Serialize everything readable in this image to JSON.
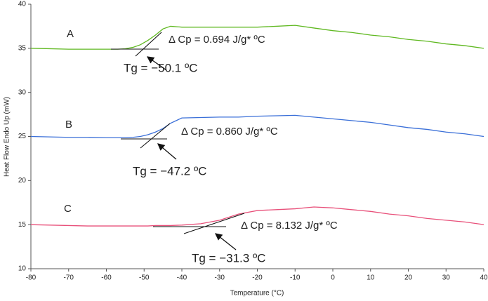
{
  "chart_data": {
    "type": "line",
    "x_label": "Temperature (°C)",
    "y_label": "Heat Flow Endo Up (mW)",
    "x": [
      -80,
      -75,
      -70,
      -65,
      -60,
      -57,
      -55,
      -53,
      -51,
      -49,
      -47,
      -45,
      -43,
      -40,
      -35,
      -30,
      -25,
      -20,
      -15,
      -10,
      -5,
      0,
      5,
      10,
      15,
      20,
      25,
      30,
      35,
      40
    ],
    "series": [
      {
        "name": "A",
        "color": "#5fb820",
        "values": [
          35,
          34.95,
          34.9,
          34.9,
          34.9,
          34.9,
          34.95,
          35.1,
          35.4,
          35.9,
          36.5,
          37.2,
          37.5,
          37.4,
          37.4,
          37.4,
          37.4,
          37.4,
          37.5,
          37.6,
          37.3,
          37.0,
          36.8,
          36.5,
          36.3,
          36.0,
          35.8,
          35.5,
          35.3,
          35.0
        ]
      },
      {
        "name": "B",
        "color": "#3a6fd8",
        "values": [
          25,
          24.95,
          24.9,
          24.9,
          24.85,
          24.85,
          24.85,
          24.9,
          25.0,
          25.2,
          25.5,
          25.9,
          26.5,
          27.1,
          27.15,
          27.2,
          27.2,
          27.3,
          27.35,
          27.4,
          27.2,
          27.0,
          26.8,
          26.6,
          26.3,
          26.0,
          25.8,
          25.5,
          25.3,
          25.0
        ]
      },
      {
        "name": "C",
        "color": "#e8507a",
        "values": [
          15,
          14.95,
          14.9,
          14.85,
          14.85,
          14.85,
          14.85,
          14.85,
          14.85,
          14.85,
          14.9,
          14.9,
          14.9,
          14.95,
          15.1,
          15.5,
          16.2,
          16.6,
          16.7,
          16.8,
          17.0,
          16.9,
          16.7,
          16.5,
          16.2,
          16.0,
          15.7,
          15.5,
          15.3,
          15.0
        ]
      }
    ],
    "annotations": [
      "Δ Cp = 0.694 J/g* ºC",
      "Tg = −50.1 ºC",
      "Δ Cp = 0.860 J/g* ºC",
      "Tg = −47.2 ºC",
      "Δ Cp = 8.132 J/g* ºC",
      "Tg = −31.3 ºC"
    ],
    "xlim": [
      -80,
      40
    ],
    "xticks": [
      -80,
      -70,
      -60,
      -50,
      -40,
      -30,
      -20,
      -10,
      0,
      10,
      20,
      30,
      40
    ],
    "ylim": [
      10,
      40
    ],
    "yticks": [
      10,
      15,
      20,
      25,
      30,
      35,
      40
    ],
    "grid": false
  }
}
